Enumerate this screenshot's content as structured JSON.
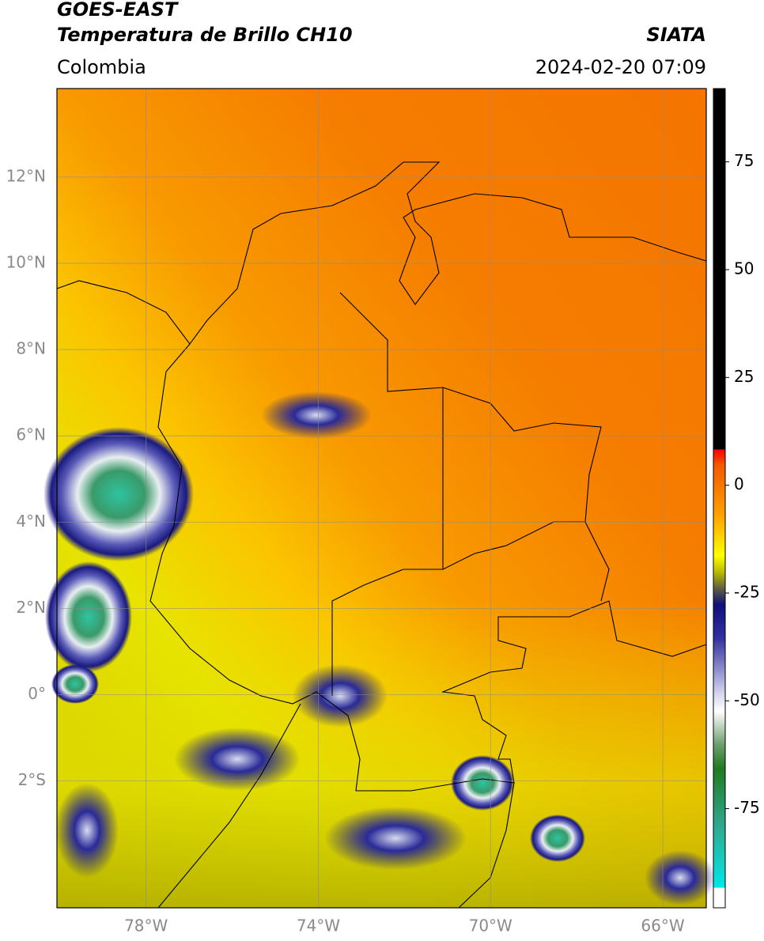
{
  "header": {
    "title": "GOES-EAST",
    "subtitle": "Temperatura de Brillo CH10",
    "source": "SIATA",
    "region": "Colombia",
    "datetime": "2024-02-20 07:09"
  },
  "map": {
    "xlim": [
      -80.07,
      -64.99
    ],
    "ylim": [
      -4.94,
      14.05
    ],
    "xticks": [
      {
        "value": -78,
        "label": "78°W"
      },
      {
        "value": -74,
        "label": "74°W"
      },
      {
        "value": -70,
        "label": "70°W"
      },
      {
        "value": -66,
        "label": "66°W"
      }
    ],
    "yticks": [
      {
        "value": 12,
        "label": "12°N"
      },
      {
        "value": 10,
        "label": "10°N"
      },
      {
        "value": 8,
        "label": "8°N"
      },
      {
        "value": 6,
        "label": "6°N"
      },
      {
        "value": 4,
        "label": "4°N"
      },
      {
        "value": 2,
        "label": "2°N"
      },
      {
        "value": 0,
        "label": "0°"
      },
      {
        "value": -2,
        "label": "2°S"
      }
    ],
    "grid": true
  },
  "colorbar": {
    "clim": [
      -98,
      92
    ],
    "ticks": [
      75,
      50,
      25,
      0,
      -25,
      -50,
      -75
    ]
  }
}
